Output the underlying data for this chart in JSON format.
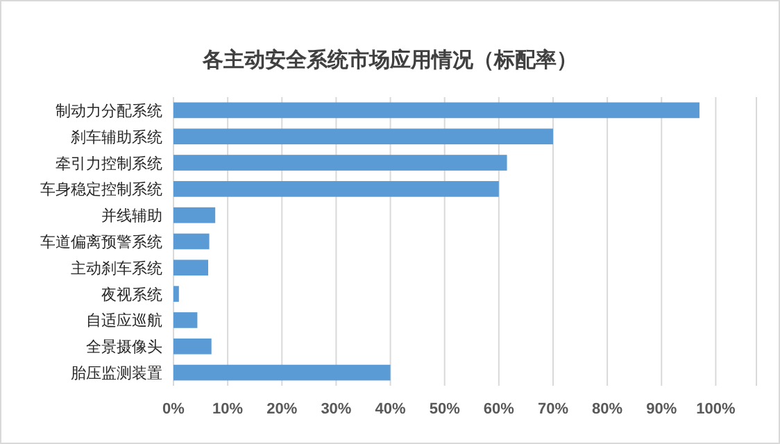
{
  "chart_data": {
    "type": "bar",
    "orientation": "horizontal",
    "title": "各主动安全系统市场应用情况（标配率）",
    "categories": [
      "制动力分配系统",
      "刹车辅助系统",
      "牵引力控制系统",
      "车身稳定控制系统",
      "并线辅助",
      "车道偏离预警系统",
      "主动刹车系统",
      "夜视系统",
      "自适应巡航",
      "全景摄像头",
      "胎压监测装置"
    ],
    "values": [
      97,
      70,
      61.5,
      60,
      7.7,
      6.6,
      6.4,
      1,
      4.4,
      7,
      40
    ],
    "color": "#5b9bd5",
    "xlim": [
      0,
      107.5
    ],
    "xticks": [
      {
        "value": 0,
        "label": "0%"
      },
      {
        "value": 10,
        "label": "10%"
      },
      {
        "value": 20,
        "label": "20%"
      },
      {
        "value": 30,
        "label": "30%"
      },
      {
        "value": 40,
        "label": "40%"
      },
      {
        "value": 50,
        "label": "50%"
      },
      {
        "value": 60,
        "label": "60%"
      },
      {
        "value": 70,
        "label": "70%"
      },
      {
        "value": 80,
        "label": "80%"
      },
      {
        "value": 90,
        "label": "90%"
      },
      {
        "value": 100,
        "label": "100%"
      }
    ],
    "grid": "x"
  }
}
